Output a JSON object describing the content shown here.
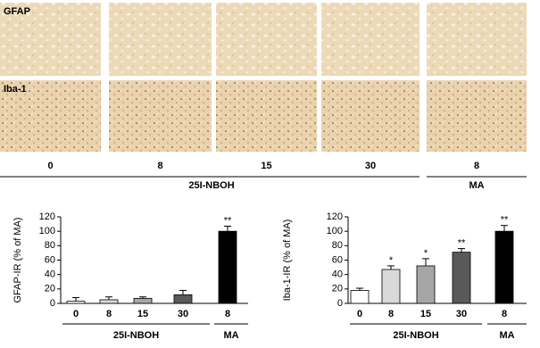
{
  "images": {
    "rows": [
      "GFAP",
      "Iba-1"
    ],
    "doses": [
      "0",
      "8",
      "15",
      "30",
      "8"
    ],
    "groups": [
      "25I-NBOH",
      "MA"
    ]
  },
  "chart_data": [
    {
      "type": "bar",
      "y_label": "GFAP-IR (% of MA)",
      "categories": [
        "0",
        "8",
        "15",
        "30",
        "8"
      ],
      "groups": [
        "25I-NBOH",
        "MA"
      ],
      "values": [
        3,
        5,
        7,
        12,
        100
      ],
      "errors": [
        5,
        4,
        2,
        6,
        7
      ],
      "colors": [
        "#ffffff",
        "#d9d9d9",
        "#a6a6a6",
        "#595959",
        "#000000"
      ],
      "annotations": [
        null,
        null,
        null,
        null,
        "**"
      ],
      "ylim": [
        0,
        120
      ],
      "yticks": [
        0,
        20,
        40,
        60,
        80,
        100,
        120
      ]
    },
    {
      "type": "bar",
      "y_label": "Iba-1-IR (% of MA)",
      "categories": [
        "0",
        "8",
        "15",
        "30",
        "8"
      ],
      "groups": [
        "25I-NBOH",
        "MA"
      ],
      "values": [
        18,
        47,
        52,
        71,
        100
      ],
      "errors": [
        3,
        5,
        10,
        5,
        8
      ],
      "colors": [
        "#ffffff",
        "#d9d9d9",
        "#a6a6a6",
        "#595959",
        "#000000"
      ],
      "annotations": [
        null,
        "*",
        "*",
        "**",
        "**"
      ],
      "ylim": [
        0,
        120
      ],
      "yticks": [
        0,
        20,
        40,
        60,
        80,
        100,
        120
      ]
    }
  ]
}
